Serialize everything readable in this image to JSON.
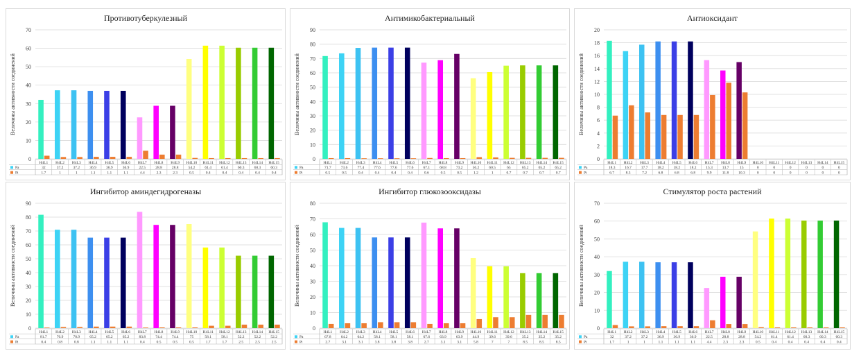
{
  "page": {
    "title": ""
  },
  "chart_data": [
    {
      "type": "bar",
      "title": "Противотуберкулезный",
      "ylabel": "Величины активности соединений",
      "ylim": [
        0,
        70
      ],
      "ytick_step": 10,
      "categories": [
        "H4L1",
        "H4L2",
        "H4L3",
        "H4L4",
        "H4L5",
        "H4L6",
        "H4L7",
        "H4L8",
        "H4L9",
        "H4L10",
        "H4L11",
        "H4L12",
        "H4L13",
        "H4L14",
        "H4L15"
      ],
      "series": [
        {
          "name": "Pa",
          "values": [
            32,
            37.2,
            37.2,
            36.9,
            36.9,
            36.9,
            22.5,
            28.8,
            28.8,
            54.2,
            61.4,
            61.4,
            60.3,
            60.3,
            60.3
          ]
        },
        {
          "name": "Pi",
          "values": [
            1.7,
            1,
            1,
            1.1,
            1.1,
            1.1,
            4.4,
            2.3,
            2.3,
            0.5,
            0.4,
            0.4,
            0.4,
            0.4,
            0.4
          ]
        }
      ],
      "grid": true,
      "legend": "data-table"
    },
    {
      "type": "bar",
      "title": "Антимикобактериальный",
      "ylabel": "Величины активности соединений",
      "ylim": [
        0,
        90
      ],
      "ytick_step": 10,
      "categories": [
        "H4L1",
        "H4L2",
        "H4L3",
        "H4L4",
        "H4L5",
        "H4L6",
        "H4L7",
        "H4L8",
        "H4L9",
        "H4L10",
        "H4L11",
        "H4L12",
        "H4L13",
        "H4L14",
        "H4L15"
      ],
      "series": [
        {
          "name": "Pa",
          "values": [
            71.7,
            73.6,
            77.4,
            77.6,
            77.6,
            77.6,
            67.1,
            68.8,
            73.2,
            56.2,
            60.5,
            65,
            65.2,
            65.2,
            65.2
          ]
        },
        {
          "name": "Pi",
          "values": [
            0.5,
            0.5,
            0.4,
            0.4,
            0.4,
            0.4,
            0.6,
            0.5,
            0.5,
            1.2,
            1,
            0.7,
            0.7,
            0.7,
            0.7
          ]
        }
      ],
      "grid": true,
      "legend": "data-table"
    },
    {
      "type": "bar",
      "title": "Антиоксидант",
      "ylabel": "Величины активности соединений",
      "ylim": [
        0,
        20
      ],
      "ytick_step": 2,
      "categories": [
        "H4L1",
        "H4L2",
        "H4L3",
        "H4L4",
        "H4L5",
        "H4L6",
        "H4L7",
        "H4L8",
        "H4L9",
        "H4L10",
        "H4L11",
        "H4L12",
        "H4L13",
        "H4L14",
        "H4L15"
      ],
      "series": [
        {
          "name": "Pa",
          "values": [
            18.3,
            16.7,
            17.7,
            18.2,
            18.2,
            18.2,
            15.3,
            13.7,
            15,
            0,
            0,
            0,
            0,
            0,
            0
          ]
        },
        {
          "name": "Pi",
          "values": [
            6.7,
            8.3,
            7.2,
            6.8,
            6.8,
            6.8,
            9.9,
            11.8,
            10.3,
            0,
            0,
            0,
            0,
            0,
            0
          ]
        }
      ],
      "grid": true,
      "legend": "data-table"
    },
    {
      "type": "bar",
      "title": "Ингибитор аминдегидрогеназы",
      "ylabel": "Величины активности соединений",
      "ylim": [
        0,
        90
      ],
      "ytick_step": 10,
      "categories": [
        "H4L1",
        "H4L2",
        "H4L3",
        "H4L4",
        "H4L5",
        "H4L6",
        "H4L7",
        "H4L8",
        "H4L9",
        "H4L10",
        "H4L11",
        "H4L12",
        "H4L13",
        "H4L14",
        "H4L15"
      ],
      "series": [
        {
          "name": "Pa",
          "values": [
            81.7,
            70.9,
            70.9,
            65.2,
            65.2,
            65.2,
            83.8,
            74.4,
            74.4,
            75,
            58.1,
            58.1,
            52.2,
            52.2,
            52.2
          ]
        },
        {
          "name": "Pi",
          "values": [
            0.4,
            0.8,
            0.8,
            1.1,
            1.1,
            1.1,
            0.4,
            0.5,
            0.5,
            0.5,
            1.7,
            1.7,
            2.5,
            2.5,
            2.5
          ]
        }
      ],
      "grid": true,
      "legend": "data-table"
    },
    {
      "type": "bar",
      "title": "Ингибитор глюкозооксидазы",
      "ylabel": "Величины активности соединений",
      "ylim": [
        0,
        80
      ],
      "ytick_step": 10,
      "categories": [
        "H4L1",
        "H4L2",
        "H4L3",
        "H4L4",
        "H4L5",
        "H4L6",
        "H4L7",
        "H4L8",
        "H4L9",
        "H4L10",
        "H4L11",
        "H4L12",
        "H4L13",
        "H4L14",
        "H4L15"
      ],
      "series": [
        {
          "name": "Pa",
          "values": [
            67.8,
            64.2,
            64.2,
            58.1,
            58.1,
            58.1,
            67.6,
            63.9,
            63.9,
            44.9,
            39.6,
            39.6,
            35.2,
            35.2,
            35.2
          ]
        },
        {
          "name": "Pi",
          "values": [
            2.7,
            3.1,
            3.1,
            3.8,
            3.8,
            3.8,
            2.7,
            3.1,
            3.1,
            5.8,
            7,
            7,
            8.5,
            8.5,
            8.5
          ]
        }
      ],
      "grid": true,
      "legend": "data-table"
    },
    {
      "type": "bar",
      "title": "Стимулятор роста растений",
      "ylabel": "Величины активности соединений",
      "ylim": [
        0,
        70
      ],
      "ytick_step": 10,
      "categories": [
        "H4L1",
        "H4L2",
        "H4L3",
        "H4L4",
        "H4L5",
        "H4L6",
        "H4L7",
        "H4L8",
        "H4L9",
        "H4L10",
        "H4L11",
        "H4L12",
        "H4L13",
        "H4L14",
        "H4L15"
      ],
      "series": [
        {
          "name": "Pa",
          "values": [
            32,
            37.2,
            37.2,
            36.9,
            36.9,
            36.9,
            22.5,
            28.8,
            28.8,
            54.2,
            61.4,
            61.4,
            60.3,
            60.3,
            60.3
          ]
        },
        {
          "name": "Pi",
          "values": [
            1.7,
            1,
            1,
            1.1,
            1.1,
            1.1,
            4.4,
            2.3,
            2.3,
            0.5,
            0.4,
            0.4,
            0.4,
            0.4,
            0.4
          ]
        }
      ],
      "grid": true,
      "legend": "data-table"
    }
  ],
  "colors": {
    "pa_bars": [
      "#33f0c0",
      "#3dd3f5",
      "#3dc2f2",
      "#3d8ff0",
      "#3b3fe6",
      "#00005e",
      "#ff99ff",
      "#ff00ff",
      "#660066",
      "#ffff80",
      "#ffff00",
      "#ccff33",
      "#99cc00",
      "#33cc33",
      "#006600"
    ],
    "pi": "#ed7d31",
    "grid": "#d9d9d9",
    "axis_text": "#404040"
  }
}
